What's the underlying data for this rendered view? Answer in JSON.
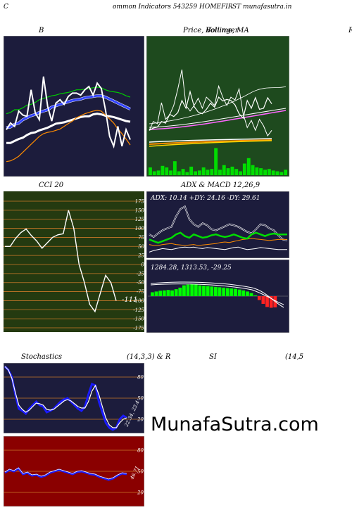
{
  "header": {
    "c": "C",
    "center": "ommon  Indicators 543259 HOMEFIR",
    "right": "ST munafasutra.in"
  },
  "titles": {
    "b": "B",
    "price": "Price,  Volume,  MA",
    "price_overlap": "Bollinger",
    "r": "R",
    "cci": "CCI 20",
    "adx_macd": "ADX  & MACD 12,26,9",
    "c2": "C",
    "stoch": "Stochastics",
    "stoch_params": "(14,3,3) & R",
    "si": "SI",
    "si_params": "(14,5"
  },
  "adx_readout": "ADX: 10.14   +DY: 24.16   -DY: 29.61",
  "macd_readout": "1284.28,   1313.53,   -29.25",
  "cci_value": "-111",
  "stoch_value": "22.34, 23.4",
  "rsi_value": "46.71",
  "watermark": "MunafaSutra.com",
  "colors": {
    "navy": "#1c1c3c",
    "green_bg": "#1e4a1e",
    "olive_bg": "#243a10",
    "red_bg": "#8a0000",
    "grid_orange": "#c87828",
    "blue": "#1a1aff",
    "bright_green": "#00dd00",
    "orange": "#ff8c00"
  },
  "chart_data": [
    {
      "type": "line",
      "panel": "bollinger",
      "series": [
        {
          "values": [
            0.0,
            0.0,
            0.3,
            0.6,
            0.8,
            1.2,
            1.5,
            1.6,
            1.9,
            2.1,
            2.3,
            2.6,
            2.9,
            3.0,
            3.1,
            3.3,
            3.5,
            3.7,
            3.9,
            4.0,
            4.0,
            4.3,
            4.4,
            4.3,
            4.1,
            4.0,
            3.9,
            3.7,
            3.5,
            3.3,
            3.2
          ]
        },
        {
          "values": [
            4.4,
            4.6,
            5.0,
            5.0,
            5.3,
            5.7,
            5.8,
            6.1,
            6.5,
            6.7,
            6.9,
            7.1,
            7.2,
            7.4,
            7.5,
            7.6,
            7.8,
            8.0,
            8.0,
            8.1,
            8.2,
            8.3,
            8.4,
            8.3,
            8.0,
            7.8,
            7.7,
            7.6,
            7.4,
            7.1,
            6.9
          ]
        },
        {
          "values": [
            2.3,
            2.4,
            2.8,
            3.0,
            3.5,
            3.8,
            4.1,
            4.3,
            4.6,
            4.8,
            5.0,
            5.4,
            5.6,
            5.8,
            6.0,
            6.2,
            6.4,
            6.5,
            6.6,
            6.8,
            6.9,
            7.0,
            7.1,
            7.1,
            6.9,
            6.6,
            6.3,
            6.0,
            5.7,
            5.4,
            5.1
          ]
        },
        {
          "values": [
            -2.8,
            -2.7,
            -2.4,
            -2.0,
            -1.4,
            -0.8,
            -0.2,
            0.4,
            1.0,
            1.4,
            1.6,
            1.7,
            1.9,
            2.1,
            2.5,
            2.9,
            3.3,
            3.8,
            4.1,
            4.4,
            4.6,
            4.8,
            4.9,
            4.8,
            4.2,
            3.6,
            3.0,
            2.1,
            1.4,
            0.6,
            -0.3
          ]
        },
        {
          "values": [
            2.0,
            3.0,
            2.5,
            4.8,
            4.2,
            4.0,
            8.0,
            4.5,
            3.5,
            10.0,
            5.5,
            3.3,
            6.0,
            6.5,
            5.8,
            7.0,
            7.5,
            7.5,
            7.2,
            8.0,
            8.5,
            7.2,
            9.0,
            8.2,
            5.0,
            1.0,
            -0.5,
            2.5,
            -0.5,
            2.0,
            0.5
          ]
        }
      ]
    },
    {
      "type": "line",
      "panel": "price",
      "series": [
        {
          "values": [
            2.0,
            2.4,
            2.6,
            3.6,
            3.3,
            4.9,
            4.5,
            5.2,
            7.4,
            6.0,
            9.0,
            6.3,
            5.3,
            5.0,
            5.8,
            6.9,
            6.2,
            8.0,
            7.3,
            7.6,
            7.4,
            6.6,
            5.0,
            4.2,
            7.4,
            6.0,
            7.9,
            5.8,
            6.0,
            7.9,
            6.8
          ]
        },
        {
          "values": [
            2.0,
            3.6,
            3.2,
            7.0,
            4.0,
            4.8,
            6.5,
            9.5,
            13.0,
            6.5,
            5.5,
            6.5,
            7.8,
            6.0,
            8.0,
            7.3,
            6.5,
            10.0,
            8.0,
            6.5,
            8.0,
            7.5,
            9.5,
            5.0,
            2.5,
            3.8,
            2.0,
            4.0,
            2.8,
            1.0,
            2.0
          ]
        }
      ]
    },
    {
      "type": "bar",
      "panel": "volume",
      "values": [
        1.0,
        0.5,
        0.6,
        1.2,
        1.0,
        0.6,
        1.8,
        0.5,
        0.8,
        0.4,
        1.1,
        0.5,
        0.6,
        1.0,
        0.7,
        0.8,
        3.5,
        0.7,
        1.3,
        0.9,
        1.1,
        0.8,
        0.5,
        1.5,
        2.2,
        1.3,
        1.0,
        0.9,
        0.7,
        0.8,
        0.6,
        0.5,
        0.4,
        0.7
      ]
    },
    {
      "type": "line",
      "panel": "cci",
      "yticks": [
        175,
        150,
        125,
        100,
        75,
        50,
        25,
        0,
        -25,
        -50,
        -75,
        -100,
        -125,
        -150,
        -175
      ],
      "series": [
        {
          "name": "CCI",
          "values": [
            50,
            50,
            72,
            88,
            98,
            80,
            65,
            45,
            60,
            75,
            82,
            85,
            150,
            100,
            0,
            -50,
            -110,
            -130,
            -80,
            -30,
            -50,
            -100
          ]
        }
      ]
    },
    {
      "type": "line",
      "panel": "adx",
      "series": [
        {
          "values": [
            40,
            35,
            42,
            48,
            52,
            55,
            75,
            90,
            95,
            70,
            60,
            55,
            62,
            58,
            50,
            48,
            52,
            56,
            60,
            58,
            55,
            50,
            45,
            42,
            50,
            60,
            58,
            52,
            48,
            38,
            30,
            28
          ]
        },
        {
          "values": [
            5,
            8,
            10,
            12,
            11,
            10,
            12,
            14,
            15,
            14,
            15,
            13,
            12,
            14,
            13,
            12,
            11,
            10,
            12,
            14,
            15,
            12,
            10,
            11,
            12,
            14,
            13,
            12,
            11,
            10,
            10,
            10
          ]
        },
        {
          "values": [
            20,
            18,
            18,
            20,
            21,
            22,
            20,
            19,
            18,
            19,
            20,
            18,
            19,
            20,
            21,
            22,
            24,
            25,
            24,
            26,
            28,
            30,
            31,
            32,
            31,
            30,
            29,
            28,
            29,
            30,
            30,
            30
          ]
        },
        {
          "values": [
            18,
            16,
            14,
            16,
            18,
            20,
            24,
            26,
            22,
            20,
            24,
            22,
            20,
            21,
            23,
            24,
            22,
            21,
            22,
            24,
            22,
            20,
            19,
            24,
            26,
            24,
            22,
            24,
            25,
            24,
            24,
            24
          ]
        }
      ]
    },
    {
      "type": "bar",
      "panel": "macd",
      "values": [
        10,
        12,
        14,
        15,
        16,
        15,
        18,
        22,
        28,
        30,
        31,
        30,
        28,
        27,
        26,
        25,
        24,
        23,
        22,
        21,
        20,
        19,
        17,
        15,
        12,
        8,
        2,
        -10,
        -20,
        -28,
        -30,
        -29
      ]
    },
    {
      "type": "line",
      "panel": "stochastics",
      "yticks": [
        80,
        50,
        20
      ],
      "series": [
        {
          "values": [
            95,
            90,
            80,
            55,
            35,
            32,
            28,
            35,
            40,
            45,
            40,
            38,
            30,
            32,
            35,
            40,
            45,
            48,
            50,
            45,
            40,
            35,
            32,
            38,
            55,
            70,
            68,
            45,
            30,
            15,
            8,
            5,
            8,
            20,
            25,
            22
          ]
        },
        {
          "values": [
            95,
            90,
            78,
            58,
            40,
            34,
            30,
            33,
            38,
            43,
            42,
            40,
            34,
            33,
            34,
            38,
            42,
            46,
            48,
            46,
            42,
            38,
            36,
            36,
            45,
            60,
            68,
            55,
            38,
            22,
            12,
            8,
            8,
            15,
            20,
            22
          ]
        }
      ]
    },
    {
      "type": "line",
      "panel": "rsi",
      "yticks": [
        80,
        50,
        20
      ],
      "series": [
        {
          "values": [
            48,
            52,
            50,
            54,
            46,
            48,
            44,
            45,
            42,
            44,
            48,
            50,
            52,
            50,
            48,
            46,
            49,
            50,
            48,
            46,
            45,
            42,
            40,
            38,
            40,
            44,
            47,
            46
          ]
        }
      ]
    }
  ]
}
